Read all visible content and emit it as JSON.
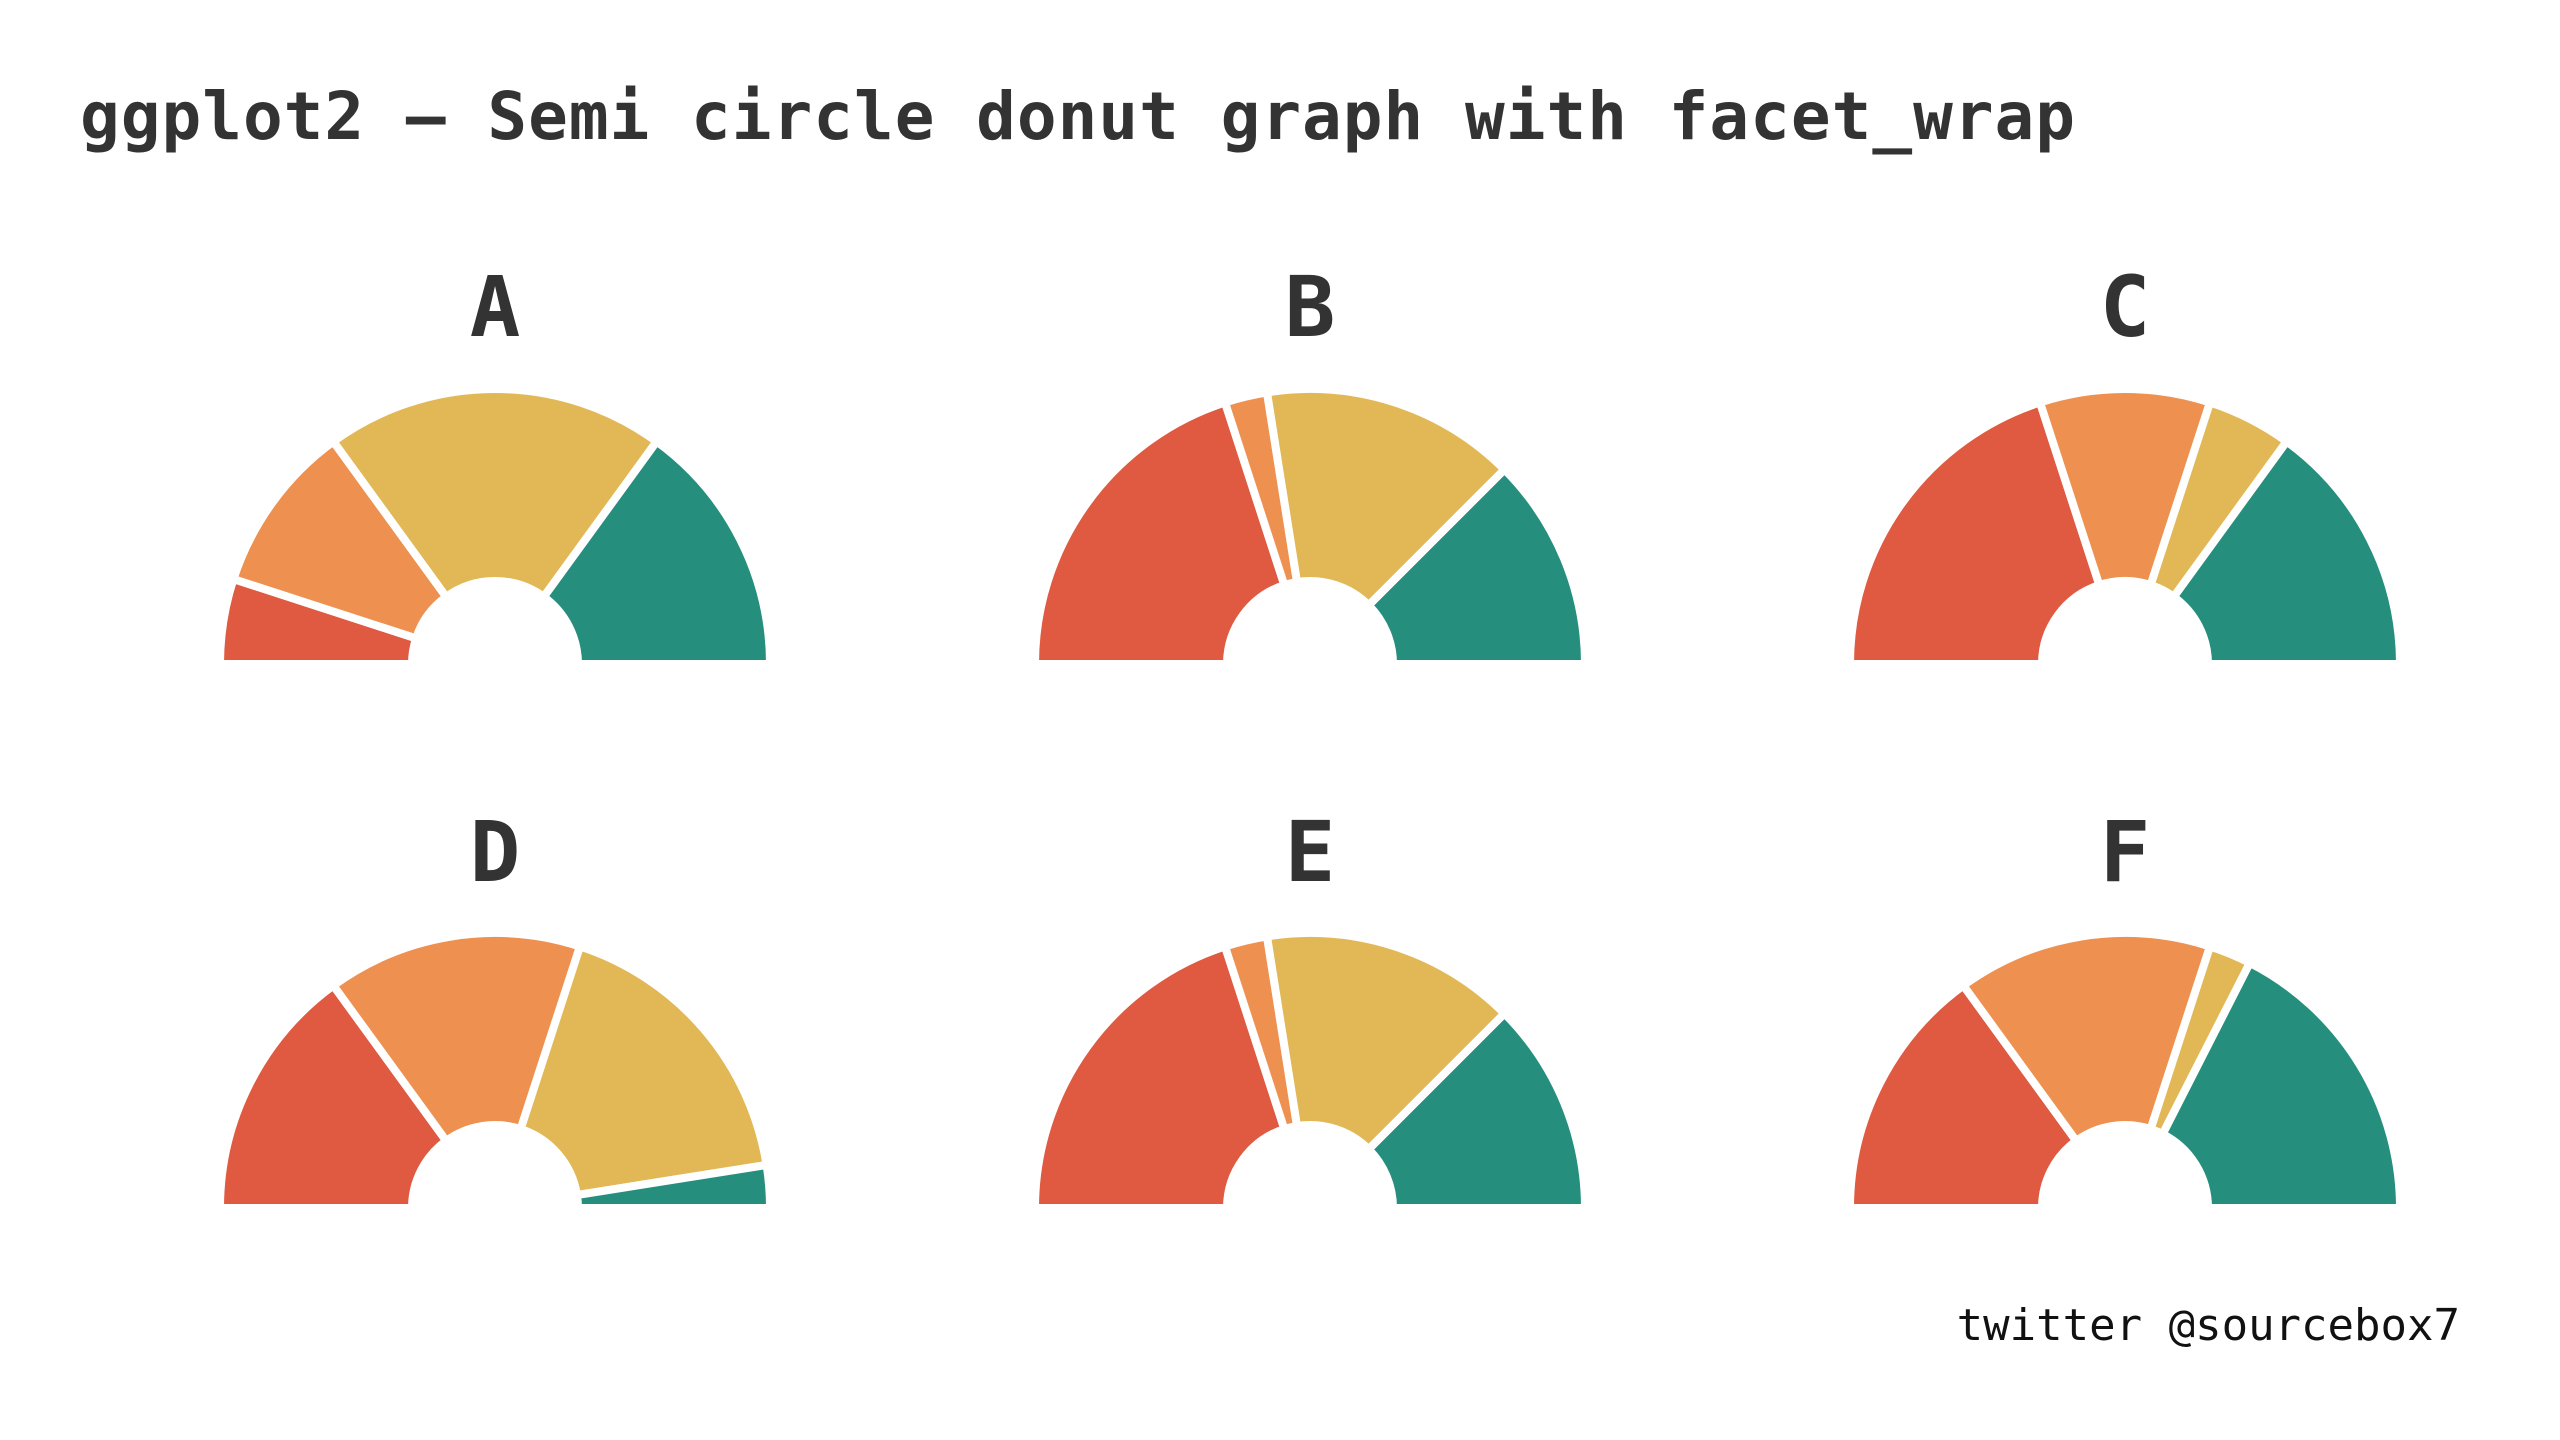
{
  "title": "ggplot2 – Semi circle donut graph with facet_wrap",
  "caption": "twitter @sourcebox7",
  "chart_data": {
    "type": "semi-donut",
    "layout": "facet_wrap, 2 rows × 3 columns",
    "category_colors": [
      "#DF5A40",
      "#EE9150",
      "#E2B857",
      "#258E7C"
    ],
    "panels": [
      {
        "label": "A",
        "values": [
          10,
          20,
          40,
          30
        ]
      },
      {
        "label": "B",
        "values": [
          40,
          5,
          30,
          25
        ]
      },
      {
        "label": "C",
        "values": [
          40,
          20,
          10,
          30
        ]
      },
      {
        "label": "D",
        "values": [
          30,
          30,
          35,
          5
        ]
      },
      {
        "label": "E",
        "values": [
          40,
          5,
          30,
          25
        ]
      },
      {
        "label": "F",
        "values": [
          30,
          30,
          5,
          35
        ]
      }
    ]
  }
}
